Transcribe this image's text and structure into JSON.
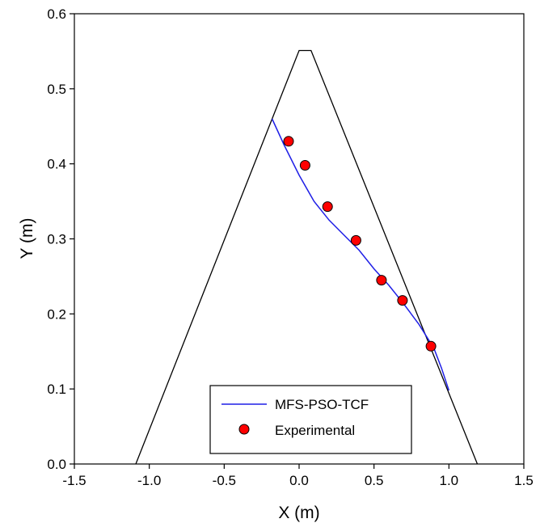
{
  "chart_data": {
    "type": "line",
    "title": "",
    "xlabel": "X (m)",
    "ylabel": "Y (m)",
    "xlim": [
      -1.5,
      1.5
    ],
    "ylim": [
      0.0,
      0.6
    ],
    "x_ticks": [
      -1.5,
      -1.0,
      -0.5,
      0.0,
      0.5,
      1.0,
      1.5
    ],
    "x_tick_labels": [
      "-1.5",
      "-1.0",
      "-0.5",
      "0.0",
      "0.5",
      "1.0",
      "1.5"
    ],
    "y_ticks": [
      0.0,
      0.1,
      0.2,
      0.3,
      0.4,
      0.5,
      0.6
    ],
    "y_tick_labels": [
      "0.0",
      "0.1",
      "0.2",
      "0.3",
      "0.4",
      "0.5",
      "0.6"
    ],
    "grid": false,
    "legend_position": "bottom-center",
    "outline": {
      "color": "#000000",
      "x": [
        -1.09,
        0.0,
        0.08,
        1.19
      ],
      "y": [
        0.0,
        0.551,
        0.551,
        0.0
      ]
    },
    "series": [
      {
        "name": "MFS-PSO-TCF",
        "type": "line",
        "color": "#1f1fe6",
        "x": [
          -0.18,
          -0.1,
          0.0,
          0.1,
          0.2,
          0.3,
          0.4,
          0.5,
          0.6,
          0.7,
          0.8,
          0.9,
          0.95,
          1.0
        ],
        "y": [
          0.46,
          0.425,
          0.385,
          0.35,
          0.325,
          0.305,
          0.285,
          0.26,
          0.238,
          0.213,
          0.186,
          0.154,
          0.128,
          0.098
        ]
      },
      {
        "name": "Experimental",
        "type": "scatter",
        "color": "#ff0000",
        "x": [
          -0.07,
          0.04,
          0.19,
          0.38,
          0.55,
          0.69,
          0.88
        ],
        "y": [
          0.43,
          0.398,
          0.343,
          0.298,
          0.245,
          0.218,
          0.157
        ]
      }
    ]
  }
}
